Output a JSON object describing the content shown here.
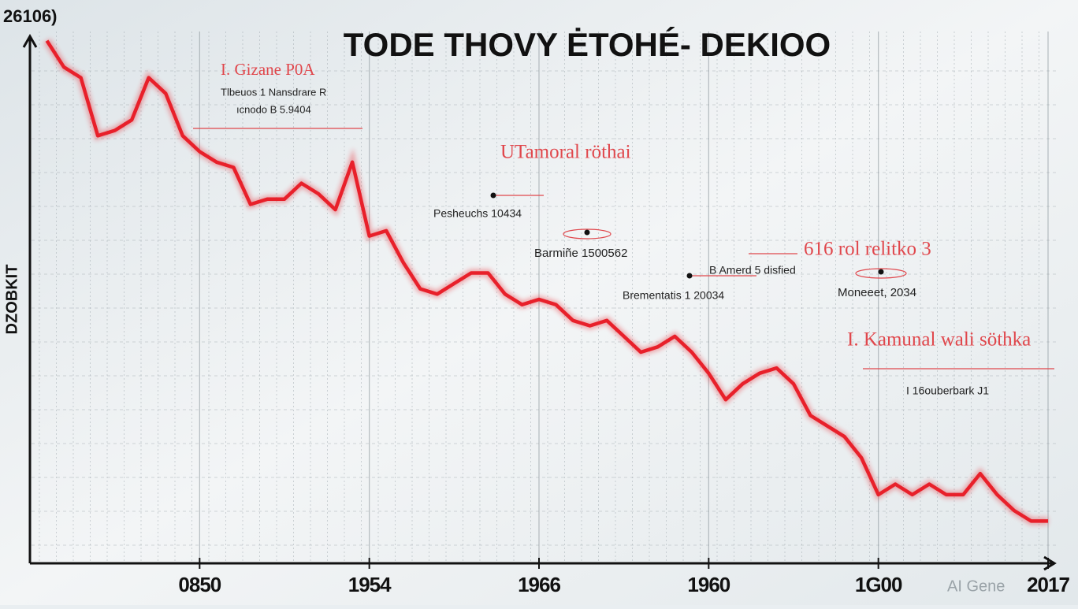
{
  "chart_data": {
    "type": "line",
    "title": "TODE THOVY ĖTOHÉ- DEKIOO",
    "y_label": "DZOBKIT",
    "y_top_label": "26106)",
    "watermark": "AI Gene",
    "xlim": [
      0,
      60
    ],
    "ylim": [
      0,
      100
    ],
    "xticks": [
      {
        "value": 10,
        "label": "0850"
      },
      {
        "value": 20,
        "label": "1954"
      },
      {
        "value": 30,
        "label": "1966"
      },
      {
        "value": 40,
        "label": "1960"
      },
      {
        "value": 50,
        "label": "1G00"
      },
      {
        "value": 60,
        "label": "2017"
      }
    ],
    "grid": true,
    "series": [
      {
        "color": "#e8202a",
        "x": [
          1,
          2,
          3,
          4,
          5,
          6,
          7,
          8,
          9,
          10,
          11,
          12,
          13,
          14,
          15,
          16,
          17,
          18,
          19,
          20,
          21,
          22,
          23,
          24,
          25,
          26,
          27,
          28,
          29,
          30,
          31,
          32,
          33,
          34,
          35,
          36,
          37,
          38,
          39,
          40,
          41,
          42,
          43,
          44,
          45,
          46,
          47,
          48,
          49,
          50,
          51,
          52,
          53,
          54,
          55,
          56,
          57,
          58,
          59,
          60
        ],
        "values": [
          99,
          94,
          92,
          81,
          82,
          84,
          92,
          89,
          81,
          78,
          76,
          75,
          68,
          69,
          69,
          72,
          70,
          67,
          76,
          62,
          63,
          57,
          52,
          51,
          53,
          55,
          55,
          51,
          49,
          50,
          49,
          46,
          45,
          46,
          43,
          40,
          41,
          43,
          40,
          36,
          31,
          34,
          36,
          37,
          34,
          28,
          26,
          24,
          20,
          13,
          15,
          13,
          15,
          13,
          13,
          17,
          13,
          10,
          8,
          8
        ]
      }
    ],
    "annotations": [
      "I. Gizane P0A",
      "Tlbeuos 1 Nansdrare R",
      "ıcnodo B 5.9404",
      "UTamoral röthai",
      "Pesheuchs 10434",
      "Barmiñe 1500562",
      "616 rol relitko 3",
      "B Amerd 5 disfied",
      "Brementatis 1 20034",
      "Moneeet, 2034",
      "I. Kamunal wali söthka",
      "I 16ouberbark J1"
    ]
  }
}
